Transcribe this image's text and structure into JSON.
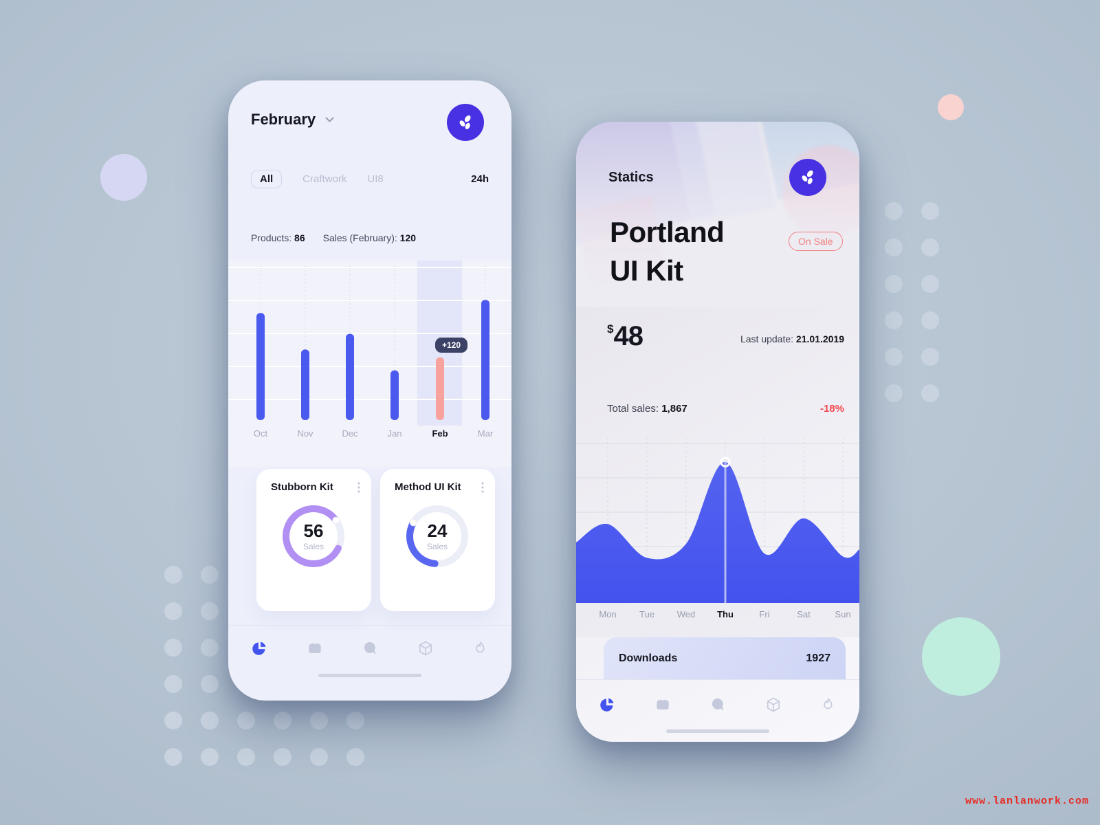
{
  "watermark": "www.lanlanwork.com",
  "colors": {
    "accent_blue": "#4353ee",
    "bar_blue": "#4a5aee",
    "bar_pink": "#f8a29e",
    "logo_purple": "#4831e2",
    "donut_purple": "#b18ff3",
    "donut_blue": "#5866f0",
    "badge_red": "#f27d7d",
    "negative_red": "#f4454e",
    "tooltip_bg": "#3c4266",
    "watermark_red": "#e62a23",
    "deco_lavender": "#d6d8f3",
    "deco_salmon": "#f8d3d0",
    "deco_mint": "#bfeede",
    "dot_color": "#c8d3df"
  },
  "nav": {
    "items": [
      {
        "name": "pie-chart"
      },
      {
        "name": "inbox"
      },
      {
        "name": "chat"
      },
      {
        "name": "cube"
      },
      {
        "name": "flame"
      }
    ],
    "active": "pie-chart"
  },
  "left_phone": {
    "header": {
      "month": "February"
    },
    "tabs": {
      "items": [
        "All",
        "Craftwork",
        "UI8"
      ],
      "active": "All",
      "time": "24h"
    },
    "stats": {
      "products_label": "Products:",
      "products_value": "86",
      "sales_label": "Sales (February):",
      "sales_value": "120"
    },
    "chart_data": {
      "type": "bar",
      "categories": [
        "Oct",
        "Nov",
        "Dec",
        "Jan",
        "Feb",
        "Mar"
      ],
      "values": [
        205,
        135,
        165,
        95,
        120,
        230
      ],
      "ylim": [
        0,
        250
      ],
      "grid": true,
      "highlight_category": "Feb",
      "tooltip": "+120",
      "bar_color": "#4a5aee",
      "highlight_bar_color": "#f8a29e",
      "title": "",
      "xlabel": "",
      "ylabel": ""
    },
    "cards": [
      {
        "title": "Stubborn Kit",
        "value": "56",
        "unit": "Sales",
        "progress": 0.83,
        "end_bearing": 55,
        "color": "#b18ff3"
      },
      {
        "title": "Method UI Kit",
        "value": "24",
        "unit": "Sales",
        "progress": 0.32,
        "end_bearing": 300,
        "color": "#5866f0"
      }
    ]
  },
  "right_phone": {
    "header_title": "Statics",
    "product": {
      "title_line1": "Portland",
      "title_line2": "UI Kit",
      "badge": "On Sale"
    },
    "price": {
      "currency": "$",
      "amount": "48"
    },
    "last_update": {
      "label": "Last update:",
      "value": "21.01.2019"
    },
    "total_sales": {
      "label": "Total sales:",
      "value": "1,867",
      "change": "-18%"
    },
    "chart_data": {
      "type": "area",
      "x": [
        "Mon",
        "Tue",
        "Wed",
        "Thu",
        "Fri",
        "Sat",
        "Sun"
      ],
      "values": [
        56,
        32,
        42,
        100,
        35,
        60,
        33
      ],
      "edge_values": [
        43,
        38
      ],
      "ylim": [
        0,
        110
      ],
      "grid": true,
      "highlight_x": "Thu",
      "area_color": "#4c5aee",
      "title": "",
      "xlabel": "",
      "ylabel": ""
    },
    "downloads": {
      "label": "Downloads",
      "value": "1927"
    }
  }
}
